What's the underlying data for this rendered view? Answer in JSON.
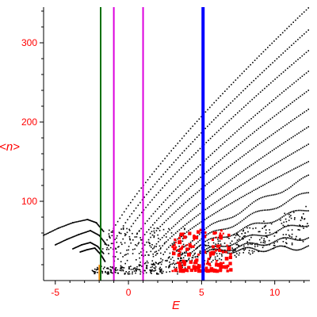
{
  "chart_data": {
    "type": "scatter",
    "title": "",
    "xlabel": "E",
    "ylabel": "<n>",
    "xlim": [
      -5.8,
      12.4
    ],
    "ylim": [
      0,
      345
    ],
    "xticks": [
      -5,
      0,
      5,
      10
    ],
    "yticks": [
      100,
      200,
      300
    ],
    "grid": false,
    "colors": {
      "axis": "#000000",
      "tick_labels": "#ff0000",
      "points": "#000000",
      "highlight": "#ff0000",
      "line_green": "#007000",
      "line_magenta": "#dd00dd",
      "line_blue": "#0000ff",
      "orange_tick": "#ff8800"
    },
    "vertical_lines": [
      {
        "x": -1.9,
        "color": "#007000"
      },
      {
        "x": -1.0,
        "color": "#dd00dd"
      },
      {
        "x": 1.0,
        "color": "#dd00dd"
      },
      {
        "x": 5.1,
        "color": "#0000ff"
      }
    ],
    "band_ends": [
      {
        "x": 12.3,
        "y": 344
      },
      {
        "x": 12.3,
        "y": 316
      },
      {
        "x": 12.3,
        "y": 290
      },
      {
        "x": 12.3,
        "y": 264
      },
      {
        "x": 12.3,
        "y": 240
      },
      {
        "x": 12.3,
        "y": 216
      },
      {
        "x": 12.3,
        "y": 194
      },
      {
        "x": 12.3,
        "y": 172
      },
      {
        "x": 12.3,
        "y": 150
      },
      {
        "x": 12.3,
        "y": 130
      },
      {
        "x": 12.3,
        "y": 110
      },
      {
        "x": 12.3,
        "y": 90
      },
      {
        "x": 12.3,
        "y": 72
      },
      {
        "x": 12.3,
        "y": 55
      },
      {
        "x": 12.3,
        "y": 42
      }
    ],
    "low_branches": [
      {
        "x": [
          -5.8,
          -4.8,
          -3.8,
          -2.8,
          -2.2,
          -1.7
        ],
        "y": [
          57,
          66,
          73,
          77,
          73,
          62
        ]
      },
      {
        "x": [
          -5.0,
          -4.2,
          -3.4,
          -2.6,
          -2.0,
          -1.5
        ],
        "y": [
          45,
          52,
          58,
          63,
          57,
          45
        ]
      },
      {
        "x": [
          -3.8,
          -3.2,
          -2.6,
          -2.1,
          -1.7
        ],
        "y": [
          40,
          45,
          48,
          43,
          34
        ]
      },
      {
        "x": [
          -3.3,
          -2.8,
          -2.3,
          -1.9,
          -1.6
        ],
        "y": [
          36,
          39,
          41,
          33,
          24
        ]
      }
    ],
    "highlight_cluster": {
      "x_range": [
        3.0,
        7.0
      ],
      "y_range": [
        12,
        65
      ],
      "count": 150
    }
  }
}
